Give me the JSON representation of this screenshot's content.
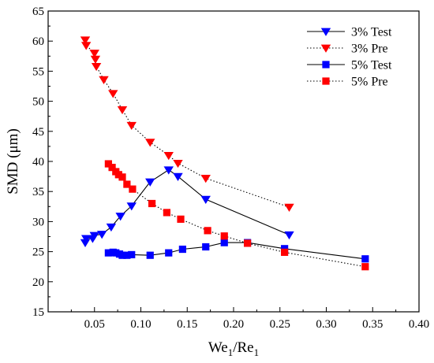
{
  "chart_data": {
    "type": "scatter",
    "xlabel": "We1/Re1",
    "xlabel_main": "We",
    "xlabel_sub1": "1",
    "xlabel_slash": "/Re",
    "xlabel_sub2": "1",
    "ylabel": "SMD (μm)",
    "xlim": [
      0.0,
      0.4
    ],
    "ylim": [
      15,
      65
    ],
    "xticks": [
      0.05,
      0.1,
      0.15,
      0.2,
      0.25,
      0.3,
      0.35,
      0.4
    ],
    "xtick_labels": [
      "0.05",
      "0.10",
      "0.15",
      "0.20",
      "0.25",
      "0.30",
      "0.35",
      "0.40"
    ],
    "yticks": [
      15,
      20,
      25,
      30,
      35,
      40,
      45,
      50,
      55,
      60,
      65
    ],
    "ytick_labels": [
      "15",
      "20",
      "25",
      "30",
      "35",
      "40",
      "45",
      "50",
      "55",
      "60",
      "65"
    ],
    "legend_position": "top-right",
    "series": [
      {
        "name": "3% Test",
        "marker": "triangle-down",
        "color": "#0000ff",
        "line": "solid",
        "points": [
          [
            0.04,
            26.5
          ],
          [
            0.041,
            27.2
          ],
          [
            0.048,
            27.2
          ],
          [
            0.05,
            27.7
          ],
          [
            0.058,
            27.9
          ],
          [
            0.068,
            29.1
          ],
          [
            0.078,
            30.9
          ],
          [
            0.09,
            32.6
          ],
          [
            0.11,
            36.6
          ],
          [
            0.13,
            38.6
          ],
          [
            0.14,
            37.5
          ],
          [
            0.17,
            33.7
          ],
          [
            0.26,
            27.8
          ]
        ]
      },
      {
        "name": "3% Pre",
        "marker": "triangle-down",
        "color": "#ff0000",
        "line": "dotted",
        "points": [
          [
            0.04,
            60.2
          ],
          [
            0.041,
            59.3
          ],
          [
            0.05,
            58.0
          ],
          [
            0.051,
            57.0
          ],
          [
            0.052,
            55.8
          ],
          [
            0.06,
            53.6
          ],
          [
            0.07,
            51.3
          ],
          [
            0.08,
            48.6
          ],
          [
            0.09,
            46.0
          ],
          [
            0.11,
            43.2
          ],
          [
            0.13,
            41.0
          ],
          [
            0.14,
            39.7
          ],
          [
            0.17,
            37.2
          ],
          [
            0.26,
            32.4
          ]
        ]
      },
      {
        "name": "5% Test",
        "marker": "square",
        "color": "#0000ff",
        "line": "solid",
        "points": [
          [
            0.065,
            24.8
          ],
          [
            0.07,
            24.9
          ],
          [
            0.073,
            24.8
          ],
          [
            0.077,
            24.6
          ],
          [
            0.08,
            24.4
          ],
          [
            0.085,
            24.4
          ],
          [
            0.09,
            24.5
          ],
          [
            0.11,
            24.4
          ],
          [
            0.13,
            24.8
          ],
          [
            0.145,
            25.4
          ],
          [
            0.17,
            25.8
          ],
          [
            0.19,
            26.5
          ],
          [
            0.215,
            26.5
          ],
          [
            0.255,
            25.5
          ],
          [
            0.342,
            23.8
          ]
        ]
      },
      {
        "name": "5% Pre",
        "marker": "square",
        "color": "#ff0000",
        "line": "dotted",
        "points": [
          [
            0.065,
            39.6
          ],
          [
            0.069,
            39.0
          ],
          [
            0.073,
            38.3
          ],
          [
            0.076,
            37.8
          ],
          [
            0.08,
            37.4
          ],
          [
            0.085,
            36.2
          ],
          [
            0.091,
            35.4
          ],
          [
            0.112,
            33.0
          ],
          [
            0.128,
            31.5
          ],
          [
            0.143,
            30.4
          ],
          [
            0.172,
            28.5
          ],
          [
            0.19,
            27.6
          ],
          [
            0.215,
            26.4
          ],
          [
            0.255,
            24.9
          ],
          [
            0.342,
            22.5
          ]
        ]
      }
    ]
  }
}
